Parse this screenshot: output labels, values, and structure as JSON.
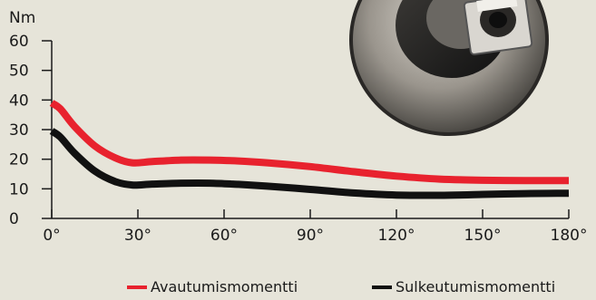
{
  "chart_data": {
    "type": "line",
    "y_unit": "Nm",
    "ylim": [
      0,
      60
    ],
    "yticks": [
      0,
      10,
      20,
      30,
      40,
      50,
      60
    ],
    "xlim": [
      0,
      180
    ],
    "xticks": [
      0,
      30,
      60,
      90,
      120,
      150,
      180
    ],
    "xtick_labels": [
      "0°",
      "30°",
      "60°",
      "90°",
      "120°",
      "150°",
      "180°"
    ],
    "grid": false,
    "legend_position": "bottom-right",
    "series": [
      {
        "name": "Avautumismomentti",
        "color": "#e8222e",
        "x": [
          0,
          3,
          8,
          15,
          22,
          28,
          35,
          45,
          55,
          65,
          75,
          90,
          105,
          120,
          135,
          150,
          165,
          180
        ],
        "y": [
          39,
          37,
          31,
          24.5,
          20.5,
          18.8,
          19.2,
          19.7,
          19.7,
          19.4,
          18.8,
          17.5,
          15.8,
          14.3,
          13.3,
          12.9,
          12.8,
          12.8
        ]
      },
      {
        "name": "Sulkeutumismomentti",
        "color": "#111111",
        "x": [
          0,
          3,
          8,
          15,
          22,
          28,
          35,
          45,
          55,
          65,
          75,
          90,
          105,
          120,
          135,
          150,
          165,
          180
        ],
        "y": [
          29.5,
          27.5,
          22,
          16,
          12.5,
          11.3,
          11.6,
          11.9,
          11.9,
          11.5,
          10.9,
          9.8,
          8.6,
          7.9,
          7.8,
          8.1,
          8.4,
          8.5
        ]
      }
    ]
  }
}
